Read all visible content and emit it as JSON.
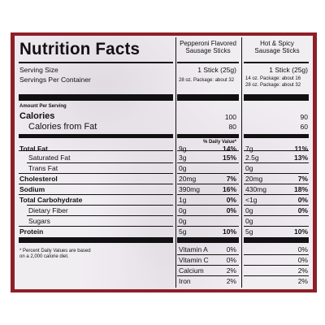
{
  "label": {
    "title": "Nutrition Facts",
    "serving_size_label": "Serving Size",
    "servings_per_container_label": "Servings Per Container",
    "amount_per_serving": "Amount Per Serving",
    "calories_label": "Calories",
    "calories_from_fat_label": "Calories from Fat",
    "total_fat_label": "Total Fat",
    "saturated_fat_label": "Saturated Fat",
    "trans_fat_label": "Trans Fat",
    "cholesterol_label": "Cholesterol",
    "sodium_label": "Sodium",
    "total_carb_label": "Total Carbohydrate",
    "dietary_fiber_label": "Dietary Fiber",
    "sugars_label": "Sugars",
    "protein_label": "Protein",
    "footnote_line1": "* Percent Daily Values are based",
    "footnote_line2": "on a 2,000 calorie diet."
  },
  "pepperoni": {
    "name_line1": "Pepperoni Flavored",
    "name_line2": "Sausage Sticks",
    "serving": "1 Stick (25g)",
    "servings": "28 oz. Package: about 32",
    "calories": "100",
    "calories_from_fat": "80",
    "dv_header": "% Daily Value*",
    "total_fat": "9g",
    "total_fat_dv": "14%",
    "sat_fat": "3g",
    "sat_fat_dv": "15%",
    "trans_fat": "0g",
    "cholesterol": "20mg",
    "cholesterol_dv": "7%",
    "sodium": "390mg",
    "sodium_dv": "16%",
    "carb": "1g",
    "carb_dv": "0%",
    "fiber": "0g",
    "fiber_dv": "0%",
    "sugars": "0g",
    "protein": "5g",
    "protein_dv": "10%",
    "vit_a_label": "Vitamin A",
    "vit_a": "0%",
    "vit_c_label": "Vitamin C",
    "vit_c": "0%",
    "calcium_label": "Calcium",
    "calcium": "2%",
    "iron_label": "Iron",
    "iron": "2%"
  },
  "hotspicy": {
    "name_line1": "Hot & Spicy",
    "name_line2": "Sausage Sticks",
    "serving": "1 Stick (25g)",
    "servings_line1": "14 oz. Package: about 16",
    "servings_line2": "28 oz. Package: about 32",
    "calories": "90",
    "calories_from_fat": "60",
    "total_fat": "7g",
    "total_fat_dv": "11%",
    "sat_fat": "2.5g",
    "sat_fat_dv": "13%",
    "trans_fat": "0g",
    "cholesterol": "20mg",
    "cholesterol_dv": "7%",
    "sodium": "430mg",
    "sodium_dv": "18%",
    "carb": "<1g",
    "carb_dv": "0%",
    "fiber": "0g",
    "fiber_dv": "0%",
    "sugars": "0g",
    "protein": "5g",
    "protein_dv": "10%",
    "vit_a": "0%",
    "vit_c": "0%",
    "calcium": "2%",
    "iron": "2%"
  }
}
